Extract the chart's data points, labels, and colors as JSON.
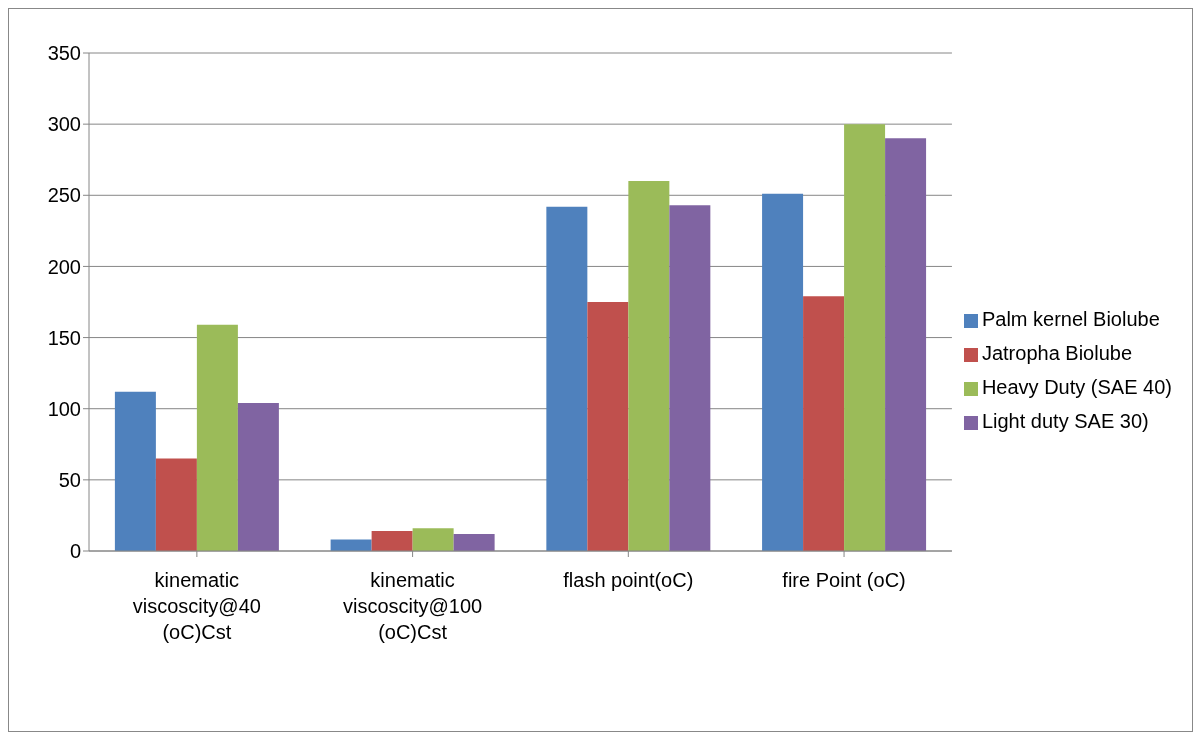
{
  "chart_data": {
    "type": "bar",
    "categories": [
      "kinematic viscoscity@40 (oC)Cst",
      "kinematic viscoscity@100 (oC)Cst",
      "flash point(oC)",
      "fire Point (oC)"
    ],
    "series": [
      {
        "name": "Palm kernel Biolube",
        "color": "#4f81bd",
        "values": [
          112,
          8,
          242,
          251
        ]
      },
      {
        "name": "Jatropha Biolube",
        "color": "#c0504d",
        "values": [
          65,
          14,
          175,
          179
        ]
      },
      {
        "name": "Heavy Duty (SAE 40)",
        "color": "#9bbb59",
        "values": [
          159,
          16,
          260,
          300
        ]
      },
      {
        "name": "Light duty SAE 30)",
        "color": "#8064a2",
        "values": [
          104,
          12,
          243,
          290
        ]
      }
    ],
    "ylim": [
      0,
      350
    ],
    "yticks": [
      0,
      50,
      100,
      150,
      200,
      250,
      300,
      350
    ],
    "grid": "y",
    "legend": "right"
  }
}
